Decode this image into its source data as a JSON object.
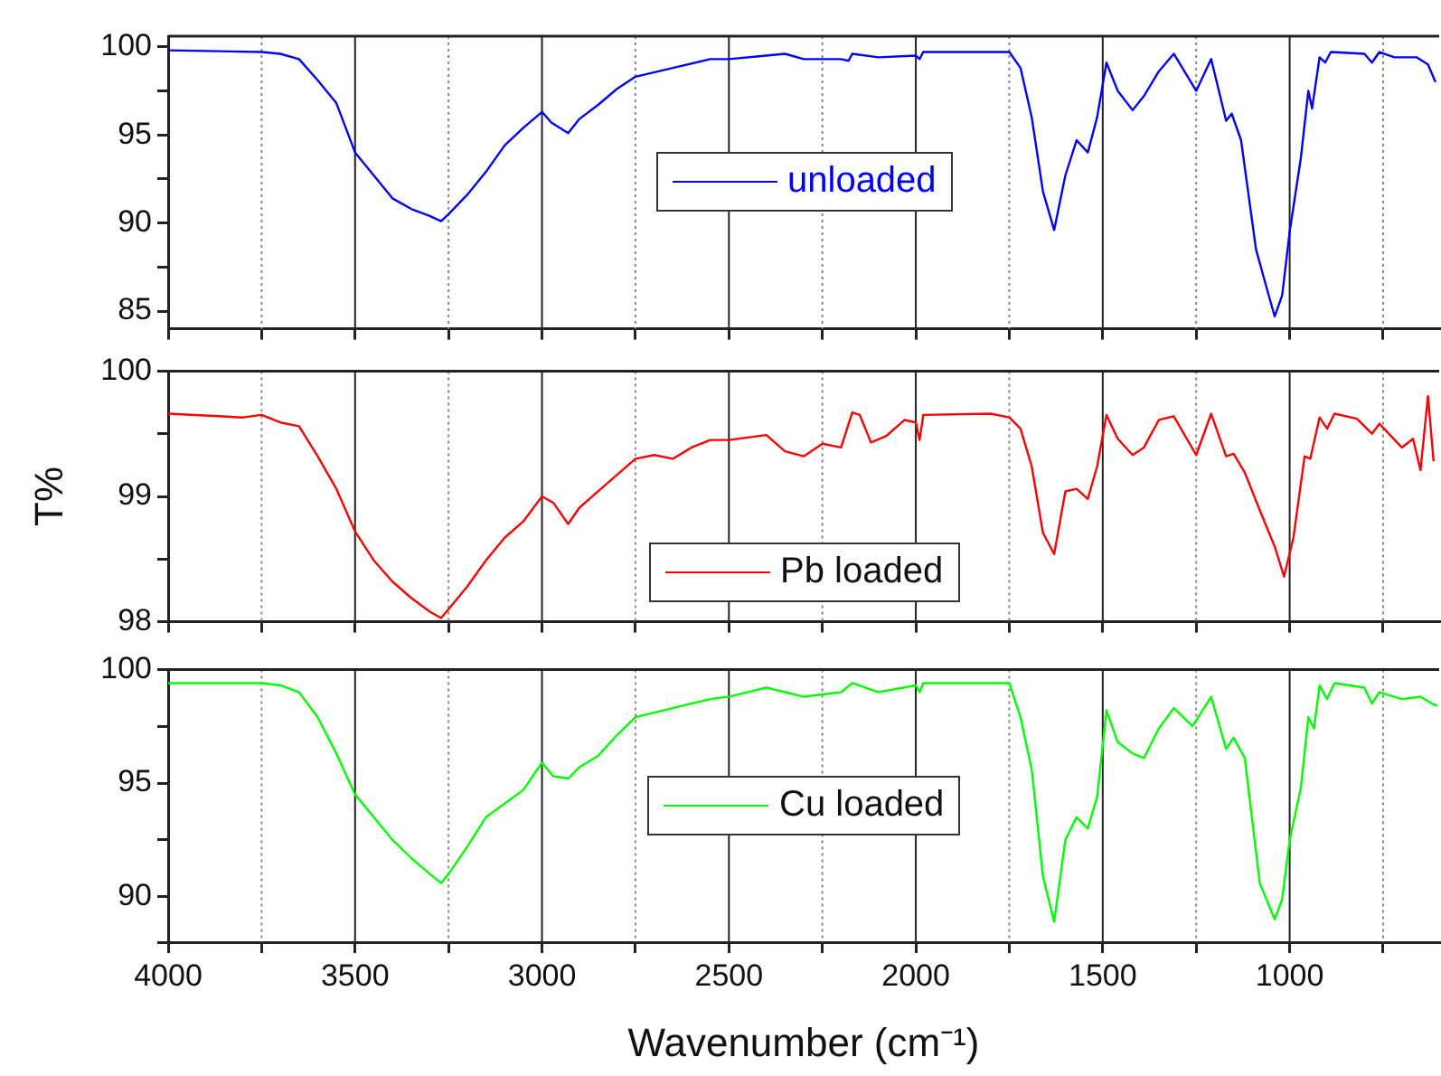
{
  "chart_data": [
    {
      "type": "line",
      "x": [
        4000,
        3750,
        3700,
        3650,
        3600,
        3550,
        3500,
        3450,
        3400,
        3350,
        3300,
        3270,
        3250,
        3200,
        3150,
        3100,
        3050,
        3000,
        2975,
        2930,
        2900,
        2850,
        2800,
        2750,
        2650,
        2550,
        2500,
        2400,
        2350,
        2300,
        2250,
        2200,
        2180,
        2170,
        2100,
        2000,
        1990,
        1980,
        1800,
        1750,
        1720,
        1690,
        1660,
        1630,
        1600,
        1570,
        1540,
        1515,
        1490,
        1460,
        1420,
        1390,
        1350,
        1310,
        1250,
        1210,
        1170,
        1155,
        1130,
        1090,
        1060,
        1040,
        1020,
        1000,
        970,
        950,
        940,
        920,
        905,
        890,
        800,
        780,
        760,
        720,
        660,
        630,
        610
      ],
      "series": [
        {
          "name": "unloaded",
          "color": "#0000ff",
          "values": [
            99.8,
            99.7,
            99.6,
            99.3,
            98.1,
            96.8,
            94.0,
            92.7,
            91.4,
            90.8,
            90.4,
            90.1,
            90.5,
            91.6,
            92.9,
            94.4,
            95.4,
            96.3,
            95.7,
            95.1,
            95.9,
            96.7,
            97.6,
            98.3,
            98.8,
            99.3,
            99.3,
            99.5,
            99.6,
            99.3,
            99.3,
            99.3,
            99.2,
            99.6,
            99.4,
            99.5,
            99.3,
            99.7,
            99.7,
            99.7,
            98.8,
            96.0,
            91.8,
            89.6,
            92.7,
            94.7,
            94.0,
            96.0,
            99.1,
            97.5,
            96.4,
            97.2,
            98.6,
            99.6,
            97.5,
            99.3,
            95.8,
            96.2,
            94.7,
            88.5,
            86.2,
            84.7,
            85.9,
            89.5,
            93.7,
            97.5,
            96.5,
            99.4,
            99.1,
            99.7,
            99.6,
            99.1,
            99.7,
            99.4,
            99.4,
            99.0,
            98.0
          ]
        }
      ],
      "xlim": [
        4000,
        600
      ],
      "xticks": [
        4000,
        {
          "value": 3750,
          "label": null
        },
        3500,
        {
          "value": 3250,
          "label": null
        },
        3000,
        {
          "value": 2750,
          "label": null
        },
        2500,
        {
          "value": 2250,
          "label": null
        },
        2000,
        {
          "value": 1750,
          "label": null
        },
        1500,
        {
          "value": 1250,
          "label": null
        },
        1000,
        {
          "value": 750,
          "label": null
        }
      ],
      "ylim": [
        84,
        100.6
      ],
      "yticks": [
        85,
        {
          "value": 87.5,
          "label": null
        },
        90,
        {
          "value": 92.5,
          "label": null
        },
        95,
        {
          "value": 97.5,
          "label": null
        },
        100
      ],
      "grid": "x",
      "legend": "center",
      "tick_labels": "y"
    },
    {
      "type": "line",
      "x": [
        4000,
        3800,
        3750,
        3700,
        3650,
        3600,
        3550,
        3500,
        3450,
        3400,
        3350,
        3300,
        3270,
        3250,
        3200,
        3150,
        3100,
        3050,
        3000,
        2970,
        2930,
        2900,
        2850,
        2800,
        2750,
        2700,
        2650,
        2600,
        2550,
        2500,
        2400,
        2350,
        2300,
        2250,
        2200,
        2170,
        2150,
        2120,
        2080,
        2030,
        2000,
        1990,
        1980,
        1800,
        1750,
        1720,
        1690,
        1660,
        1630,
        1600,
        1570,
        1540,
        1515,
        1490,
        1460,
        1420,
        1390,
        1350,
        1310,
        1250,
        1210,
        1170,
        1150,
        1120,
        1080,
        1040,
        1015,
        990,
        960,
        945,
        920,
        900,
        880,
        820,
        780,
        760,
        700,
        670,
        650,
        630,
        615
      ],
      "series": [
        {
          "name": "Pb loaded",
          "color": "#ff0000",
          "values": [
            99.66,
            99.63,
            99.65,
            99.59,
            99.56,
            99.32,
            99.06,
            98.72,
            98.49,
            98.32,
            98.19,
            98.08,
            98.03,
            98.1,
            98.28,
            98.49,
            98.67,
            98.8,
            99.0,
            98.95,
            98.78,
            98.91,
            99.04,
            99.17,
            99.3,
            99.33,
            99.3,
            99.39,
            99.45,
            99.45,
            99.49,
            99.36,
            99.32,
            99.42,
            99.39,
            99.67,
            99.65,
            99.43,
            99.48,
            99.61,
            99.59,
            99.45,
            99.65,
            99.66,
            99.63,
            99.54,
            99.24,
            98.71,
            98.54,
            99.04,
            99.06,
            98.98,
            99.24,
            99.65,
            99.46,
            99.33,
            99.39,
            99.61,
            99.64,
            99.33,
            99.66,
            99.32,
            99.34,
            99.19,
            98.89,
            98.6,
            98.36,
            98.67,
            99.32,
            99.3,
            99.63,
            99.54,
            99.66,
            99.62,
            99.5,
            99.58,
            99.39,
            99.46,
            99.21,
            99.8,
            99.28
          ]
        }
      ],
      "xlim": [
        4000,
        600
      ],
      "xticks": [
        4000,
        {
          "value": 3750,
          "label": null
        },
        3500,
        {
          "value": 3250,
          "label": null
        },
        3000,
        {
          "value": 2750,
          "label": null
        },
        2500,
        {
          "value": 2250,
          "label": null
        },
        2000,
        {
          "value": 1750,
          "label": null
        },
        1500,
        {
          "value": 1250,
          "label": null
        },
        1000,
        {
          "value": 750,
          "label": null
        }
      ],
      "ylim": [
        98,
        100
      ],
      "yticks": [
        98,
        {
          "value": 98.5,
          "label": null
        },
        99,
        {
          "value": 99.5,
          "label": null
        },
        100
      ],
      "ylabel": "T%",
      "grid": "x",
      "legend": "bottom",
      "tick_labels": "y"
    },
    {
      "type": "line",
      "x": [
        4000,
        3750,
        3700,
        3650,
        3600,
        3550,
        3500,
        3450,
        3400,
        3350,
        3300,
        3270,
        3250,
        3200,
        3150,
        3100,
        3050,
        3000,
        2970,
        2930,
        2900,
        2850,
        2800,
        2750,
        2650,
        2550,
        2500,
        2400,
        2350,
        2300,
        2200,
        2170,
        2100,
        2000,
        1990,
        1980,
        1750,
        1720,
        1690,
        1660,
        1630,
        1600,
        1570,
        1540,
        1515,
        1490,
        1460,
        1420,
        1390,
        1350,
        1310,
        1260,
        1210,
        1170,
        1150,
        1120,
        1080,
        1040,
        1020,
        1000,
        970,
        950,
        935,
        920,
        900,
        880,
        800,
        780,
        760,
        700,
        650,
        620,
        605
      ],
      "series": [
        {
          "name": "Cu loaded",
          "color": "#00ff00",
          "values": [
            99.4,
            99.4,
            99.3,
            99.0,
            97.9,
            96.3,
            94.5,
            93.5,
            92.5,
            91.7,
            91.0,
            90.6,
            91.0,
            92.2,
            93.5,
            94.1,
            94.7,
            95.9,
            95.3,
            95.2,
            95.7,
            96.2,
            97.1,
            97.9,
            98.3,
            98.7,
            98.8,
            99.2,
            99.0,
            98.8,
            99.0,
            99.4,
            99.0,
            99.3,
            99.0,
            99.4,
            99.4,
            97.9,
            95.6,
            90.9,
            88.9,
            92.5,
            93.5,
            93.0,
            94.4,
            98.2,
            96.8,
            96.3,
            96.1,
            97.4,
            98.3,
            97.5,
            98.8,
            96.5,
            97.0,
            96.1,
            90.6,
            89.0,
            89.9,
            92.5,
            94.8,
            97.9,
            97.4,
            99.3,
            98.7,
            99.4,
            99.2,
            98.5,
            99.0,
            98.7,
            98.8,
            98.5,
            98.4
          ]
        }
      ],
      "xlim": [
        4000,
        600
      ],
      "xticks": [
        4000,
        {
          "value": 3750,
          "label": null
        },
        3500,
        {
          "value": 3250,
          "label": null
        },
        3000,
        {
          "value": 2750,
          "label": null
        },
        2500,
        {
          "value": 2250,
          "label": null
        },
        2000,
        {
          "value": 1750,
          "label": null
        },
        1500,
        {
          "value": 1250,
          "label": null
        },
        1000,
        {
          "value": 750,
          "label": null
        }
      ],
      "ylim": [
        88,
        100
      ],
      "yticks": [
        {
          "value": 88,
          "label": null
        },
        90,
        {
          "value": 92.5,
          "label": null
        },
        95,
        {
          "value": 97.5,
          "label": null
        },
        100
      ],
      "xlabel": "Wavenumber (cm⁻¹)",
      "grid": "x",
      "legend": "center"
    }
  ]
}
